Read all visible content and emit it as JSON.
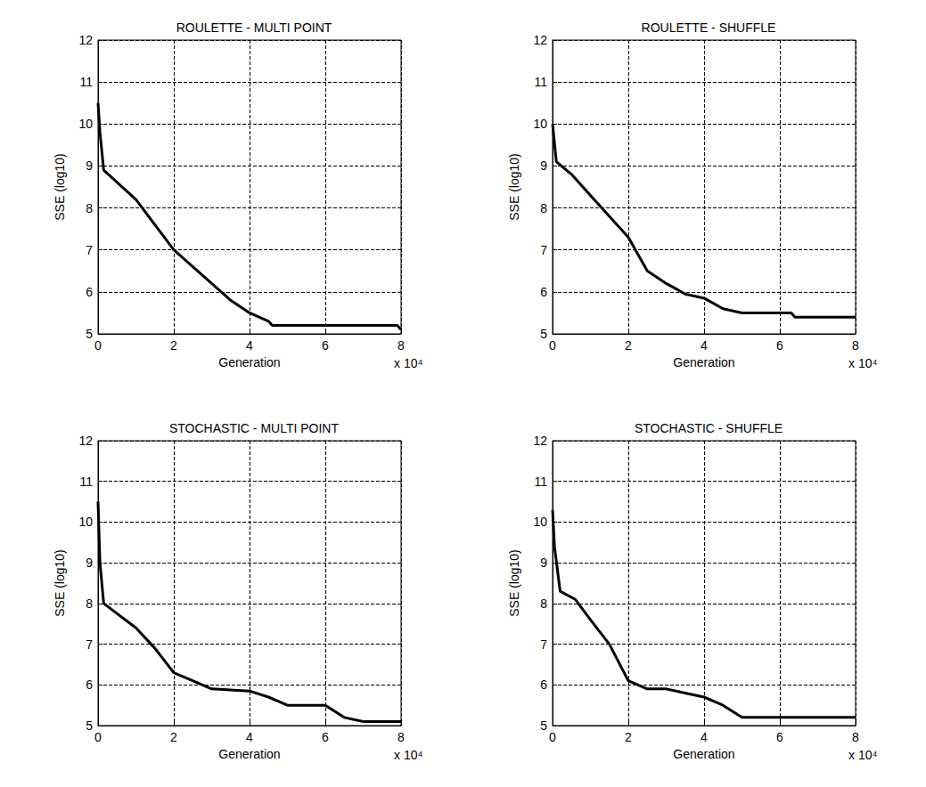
{
  "chart_data": [
    {
      "type": "line",
      "title": "ROULETTE - MULTI POINT",
      "xlabel": "Generation",
      "ylabel": "SSE (log10)",
      "annotation": "x 10⁴",
      "x": [
        0,
        0.05,
        0.15,
        1,
        2,
        3,
        3.5,
        4,
        4.5,
        4.6,
        7.9,
        8
      ],
      "values": [
        10.5,
        9.8,
        8.9,
        8.2,
        7.0,
        6.2,
        5.8,
        5.5,
        5.3,
        5.2,
        5.2,
        5.1
      ],
      "xlim": [
        0,
        8
      ],
      "xticks": [
        0,
        2,
        4,
        6,
        8
      ],
      "ylim": [
        5,
        12
      ],
      "yticks": [
        5,
        6,
        7,
        8,
        9,
        10,
        11,
        12
      ],
      "grid": true,
      "color": "#000000",
      "line_style": "solid"
    },
    {
      "type": "line",
      "title": "ROULETTE - SHUFFLE",
      "xlabel": "Generation",
      "ylabel": "SSE (log10)",
      "annotation": "x 10⁴",
      "x": [
        0,
        0.1,
        0.5,
        1,
        2,
        2.5,
        3,
        3.5,
        4,
        4.5,
        5,
        6.3,
        6.4,
        8
      ],
      "values": [
        10.0,
        9.1,
        8.8,
        8.3,
        7.3,
        6.5,
        6.2,
        5.95,
        5.85,
        5.6,
        5.5,
        5.5,
        5.4,
        5.4
      ],
      "xlim": [
        0,
        8
      ],
      "xticks": [
        0,
        2,
        4,
        6,
        8
      ],
      "ylim": [
        5,
        12
      ],
      "yticks": [
        5,
        6,
        7,
        8,
        9,
        10,
        11,
        12
      ],
      "grid": true,
      "color": "#000000",
      "line_style": "solid"
    },
    {
      "type": "line",
      "title": "STOCHASTIC - MULTI POINT",
      "xlabel": "Generation",
      "ylabel": "SSE (log10)",
      "annotation": "x 10⁴",
      "x": [
        0,
        0.05,
        0.15,
        1,
        1.5,
        2,
        2.5,
        3,
        4,
        4.5,
        5,
        6,
        6.5,
        7,
        8
      ],
      "values": [
        10.5,
        9.0,
        8.0,
        7.4,
        6.9,
        6.3,
        6.1,
        5.9,
        5.85,
        5.7,
        5.5,
        5.5,
        5.2,
        5.1,
        5.1
      ],
      "xlim": [
        0,
        8
      ],
      "xticks": [
        0,
        2,
        4,
        6,
        8
      ],
      "ylim": [
        5,
        12
      ],
      "yticks": [
        5,
        6,
        7,
        8,
        9,
        10,
        11,
        12
      ],
      "grid": true,
      "color": "#000000",
      "line_style": "solid"
    },
    {
      "type": "line",
      "title": "STOCHASTIC - SHUFFLE",
      "xlabel": "Generation",
      "ylabel": "SSE (log10)",
      "annotation": "x 10⁴",
      "x": [
        0,
        0.05,
        0.2,
        0.6,
        1,
        1.5,
        2,
        2.5,
        3,
        3.5,
        4,
        4.5,
        5,
        8
      ],
      "values": [
        10.3,
        9.4,
        8.3,
        8.1,
        7.6,
        7.0,
        6.1,
        5.9,
        5.9,
        5.8,
        5.7,
        5.5,
        5.2,
        5.2
      ],
      "xlim": [
        0,
        8
      ],
      "xticks": [
        0,
        2,
        4,
        6,
        8
      ],
      "ylim": [
        5,
        12
      ],
      "yticks": [
        5,
        6,
        7,
        8,
        9,
        10,
        11,
        12
      ],
      "grid": true,
      "color": "#000000",
      "line_style": "solid"
    }
  ]
}
